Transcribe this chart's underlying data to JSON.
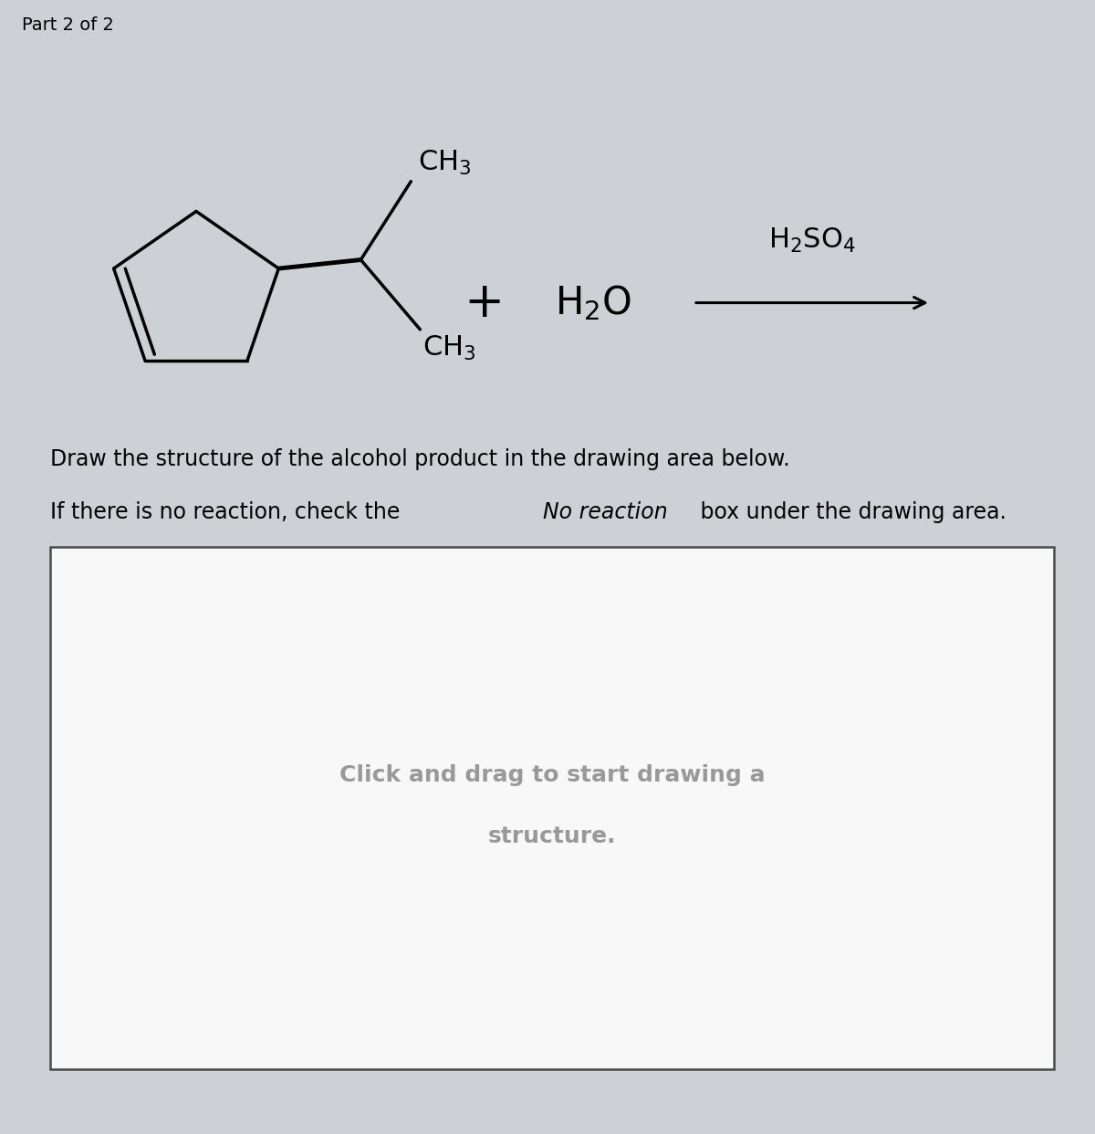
{
  "title_bar_text": "Part 2 of 2",
  "title_bar_color": "#cdd1d5",
  "bg_color": "#ffffff",
  "footer_bar_color": "#cdd1d5",
  "instruction_line1": "Draw the structure of the alcohol product in the drawing area below.",
  "instruction_line2_prefix": "If there is no reaction, check the ",
  "instruction_line2_italic": "No reaction",
  "instruction_line2_suffix": " box under the drawing area.",
  "drawing_area_text_line1": "Click and drag to start drawing a",
  "drawing_area_text_line2": "structure.",
  "text_color": "#000000",
  "gray_text_color": "#999999",
  "drawing_area_bg": "#f0f0f0",
  "drawing_area_border": "#555555"
}
